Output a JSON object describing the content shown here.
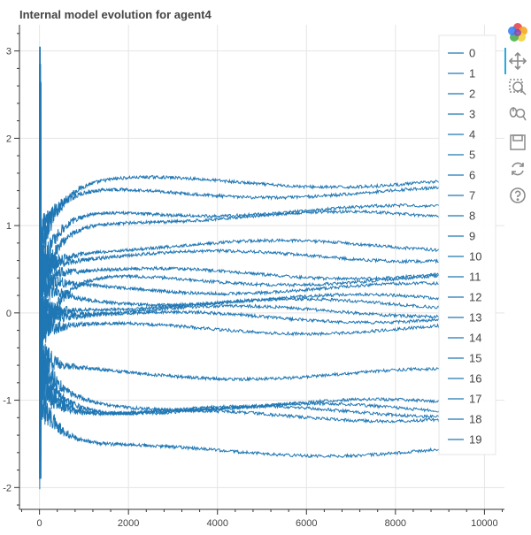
{
  "chart_data": {
    "type": "line",
    "title": "Internal model evolution for agent4",
    "xlabel": "",
    "ylabel": "",
    "xlim": [
      -450,
      10450
    ],
    "ylim": [
      -2.25,
      3.3
    ],
    "x_ticks": [
      0,
      2000,
      4000,
      6000,
      8000,
      10000
    ],
    "y_ticks": [
      -2,
      -1,
      0,
      1,
      2,
      3
    ],
    "grid": true,
    "legend_placement": "top-right",
    "line_color": "#1f77b4",
    "x_max_data": 9000,
    "series": [
      {
        "name": "0",
        "final": 1.5,
        "min": -1.6,
        "max": 3.05
      },
      {
        "name": "1",
        "final": 1.38,
        "min": -1.2,
        "max": 2.85
      },
      {
        "name": "2",
        "final": 1.17,
        "min": -1.8,
        "max": 2.65
      },
      {
        "name": "3",
        "final": 1.1,
        "min": -1.3,
        "max": 1.8
      },
      {
        "name": "4",
        "final": 0.77,
        "min": -0.8,
        "max": 1.7
      },
      {
        "name": "5",
        "final": 0.65,
        "min": -0.5,
        "max": 1.6
      },
      {
        "name": "6",
        "final": 0.45,
        "min": -0.4,
        "max": 1.4
      },
      {
        "name": "7",
        "final": 0.38,
        "min": -2.02,
        "max": 1.2
      },
      {
        "name": "8",
        "final": 0.28,
        "min": -0.6,
        "max": 1.3
      },
      {
        "name": "9",
        "final": 0.15,
        "min": -0.3,
        "max": 1.0
      },
      {
        "name": "10",
        "final": 0.1,
        "min": -0.9,
        "max": 0.9
      },
      {
        "name": "11",
        "final": 0.02,
        "min": -0.6,
        "max": 0.8
      },
      {
        "name": "12",
        "final": -0.05,
        "min": -0.7,
        "max": 0.7
      },
      {
        "name": "13",
        "final": -0.18,
        "min": -1.0,
        "max": 0.6
      },
      {
        "name": "14",
        "final": -0.7,
        "min": -1.4,
        "max": 0.4
      },
      {
        "name": "15",
        "final": -1.05,
        "min": -1.3,
        "max": 0.3
      },
      {
        "name": "16",
        "final": -1.1,
        "min": -1.4,
        "max": 0.2
      },
      {
        "name": "17",
        "final": -1.13,
        "min": -1.5,
        "max": 0.2
      },
      {
        "name": "18",
        "final": -1.18,
        "min": -1.7,
        "max": 0.1
      },
      {
        "name": "19",
        "final": -1.58,
        "min": -1.9,
        "max": 0.0
      }
    ]
  },
  "toolbar": {
    "tools": [
      {
        "name": "bokeh-logo",
        "icon": "bokeh-logo-icon"
      },
      {
        "name": "pan",
        "icon": "pan-icon"
      },
      {
        "name": "box-zoom",
        "icon": "box-zoom-icon"
      },
      {
        "name": "wheel-zoom",
        "icon": "wheel-zoom-icon"
      },
      {
        "name": "save",
        "icon": "save-icon"
      },
      {
        "name": "reset",
        "icon": "reset-icon"
      },
      {
        "name": "help",
        "icon": "help-icon"
      }
    ]
  }
}
